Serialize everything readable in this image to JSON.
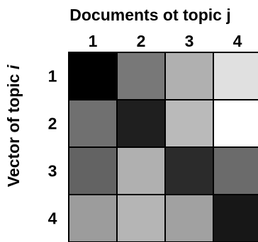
{
  "chart_data": {
    "type": "heatmap",
    "xlabel": "Documents ot topic j",
    "ylabel_prefix": "Vector of topic ",
    "ylabel_var": "i",
    "x_categories": [
      "1",
      "2",
      "3",
      "4"
    ],
    "y_categories": [
      "1",
      "2",
      "3",
      "4"
    ],
    "scale": "grayscale (black = high, white = low)",
    "values": [
      [
        1.0,
        0.53,
        0.31,
        0.12
      ],
      [
        0.56,
        0.88,
        0.27,
        0.0
      ],
      [
        0.61,
        0.31,
        0.83,
        0.58
      ],
      [
        0.39,
        0.29,
        0.37,
        0.91
      ]
    ]
  }
}
